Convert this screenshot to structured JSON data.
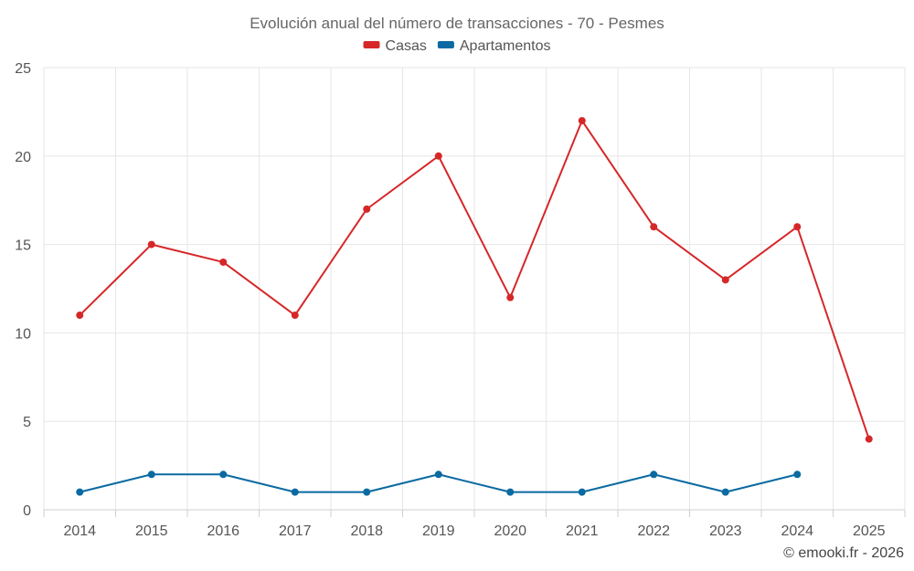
{
  "chart_data": {
    "type": "line",
    "title": "Evolución anual del número de transacciones - 70 - Pesmes",
    "categories": [
      "2014",
      "2015",
      "2016",
      "2017",
      "2018",
      "2019",
      "2020",
      "2021",
      "2022",
      "2023",
      "2024",
      "2025"
    ],
    "ylim": [
      0,
      25
    ],
    "yticks": [
      0,
      5,
      10,
      15,
      20,
      25
    ],
    "grid": true,
    "legend_position": "top-center",
    "xlabel": "",
    "ylabel": "",
    "series": [
      {
        "name": "Casas",
        "color": "#d62728",
        "values": [
          11,
          15,
          14,
          11,
          17,
          20,
          12,
          22,
          16,
          13,
          16,
          4
        ]
      },
      {
        "name": "Apartamentos",
        "color": "#0a6aa1",
        "values": [
          1,
          2,
          2,
          1,
          1,
          2,
          1,
          1,
          2,
          1,
          2,
          null
        ]
      }
    ]
  },
  "credit": "© emooki.fr - 2026"
}
